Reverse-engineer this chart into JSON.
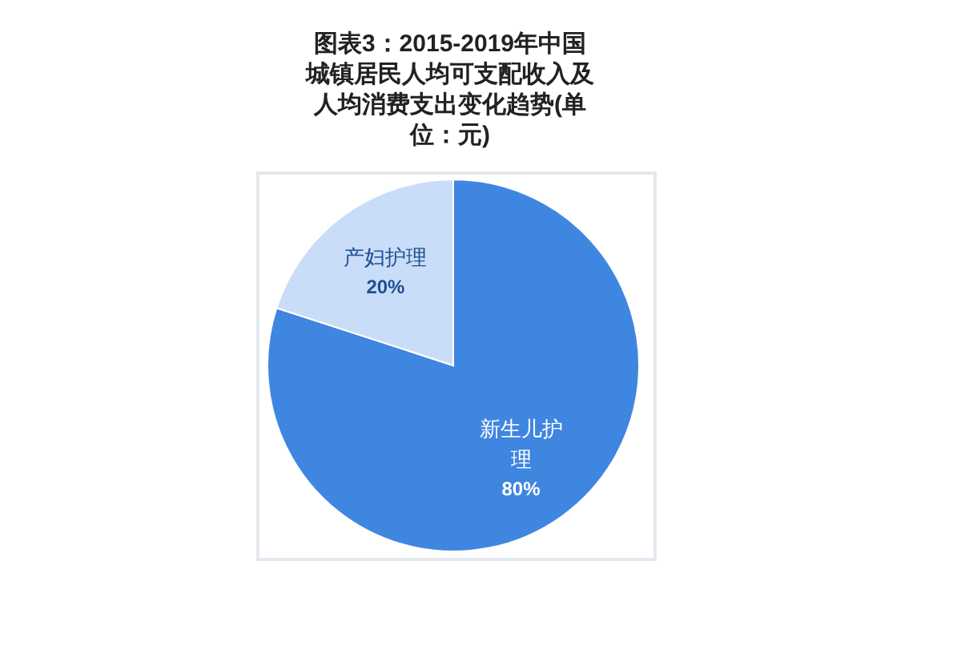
{
  "chart_data": {
    "type": "pie",
    "title": "图表3：2015-2019年中国城镇居民人均可支配收入及人均消费支出变化趋势(单位：元)",
    "categories": [
      "新生儿护理",
      "产妇护理"
    ],
    "values": [
      80,
      20
    ],
    "colors": [
      "#3f86e0",
      "#c9ddf8"
    ],
    "value_labels": [
      "80%",
      "20%"
    ]
  }
}
